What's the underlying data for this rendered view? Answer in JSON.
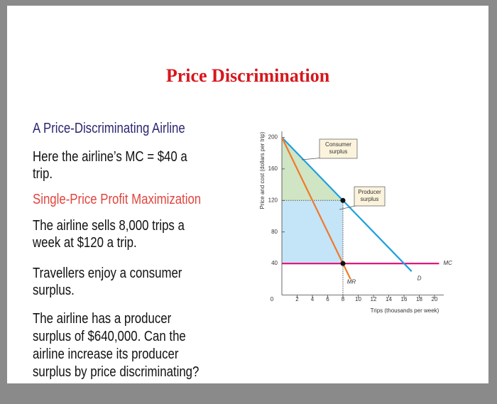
{
  "title": "Price Discrimination",
  "sections": [
    {
      "heading": "A Price-Discriminating Airline",
      "paragraphs": [
        [
          "Here the airline’s MC = $40 a",
          "trip."
        ]
      ]
    },
    {
      "heading": "Single-Price Profit Maximization",
      "paragraphs": [
        [
          "The airline sells 8,000 trips a",
          "week at $120 a trip."
        ],
        [
          "Travellers enjoy a consumer",
          "surplus."
        ],
        [
          "The airline has a producer",
          "surplus of $640,000. Can the",
          "airline increase its producer",
          "surplus by price discriminating?"
        ]
      ]
    }
  ],
  "chart_data": {
    "type": "line",
    "ylabel": "Price and cost (dollars per trip)",
    "xlabel": "Trips (thousands per week)",
    "xlim": [
      0,
      20
    ],
    "ylim": [
      0,
      200
    ],
    "xticks": [
      0,
      2,
      4,
      6,
      8,
      10,
      12,
      14,
      16,
      18,
      20
    ],
    "yticks": [
      40,
      80,
      120,
      160,
      200
    ],
    "areas": [
      {
        "label": [
          "Consumer",
          "surplus"
        ],
        "color": "#cfe5c4",
        "x": [
          0,
          0,
          8
        ],
        "values": [
          200,
          120,
          120
        ]
      },
      {
        "label": [
          "Producer",
          "surplus"
        ],
        "color": "#c4e4f7",
        "x": [
          0,
          0,
          8,
          8
        ],
        "values": [
          120,
          40,
          40,
          120
        ]
      }
    ],
    "series": [
      {
        "name": "MC",
        "color": "#e3177f",
        "x": [
          0,
          20.6
        ],
        "values": [
          40,
          40
        ]
      },
      {
        "name": "D",
        "color": "#1ea0e0",
        "x": [
          0,
          17
        ],
        "values": [
          200,
          30
        ]
      },
      {
        "name": "MR",
        "color": "#ef7a2a",
        "x": [
          0,
          9
        ],
        "values": [
          200,
          20
        ]
      }
    ],
    "points": {
      "x": [
        8,
        8
      ],
      "values": [
        120,
        40
      ]
    }
  }
}
